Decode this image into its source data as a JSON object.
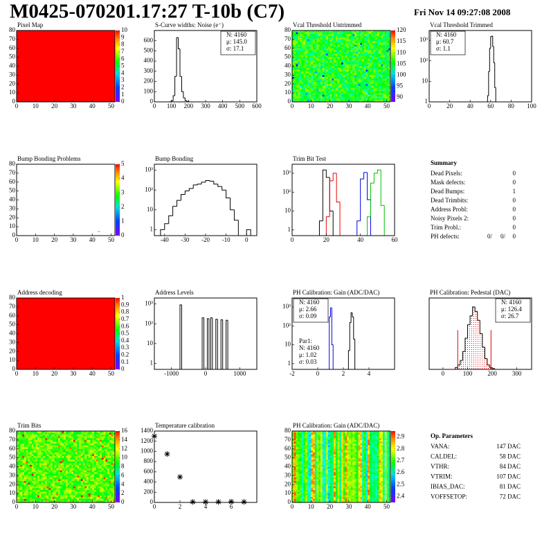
{
  "header": {
    "title": "M0425-070201.17:27 T-10b (C7)",
    "date": "Fri Nov 14 09:27:08 2008"
  },
  "chart_data": [
    {
      "type": "heatmap",
      "title": "Pixel Map",
      "xlim": [
        0,
        52
      ],
      "xticks": [
        0,
        10,
        20,
        30,
        40,
        50
      ],
      "ylim": [
        0,
        80
      ],
      "yticks": [
        0,
        10,
        20,
        30,
        40,
        50,
        60,
        70,
        80
      ],
      "zlim": [
        0,
        10
      ],
      "zticks": [
        0,
        1,
        2,
        3,
        4,
        5,
        6,
        7,
        8,
        9,
        10
      ],
      "color": "#ff0000"
    },
    {
      "type": "histogram",
      "title": "S-Curve widths: Noise (e⁻)",
      "xlim": [
        0,
        600
      ],
      "xticks": [
        0,
        100,
        200,
        300,
        400,
        500,
        600
      ],
      "ylim": [
        0,
        700
      ],
      "yticks": [
        0,
        100,
        200,
        300,
        400,
        500,
        600
      ],
      "bins": [
        90,
        100,
        110,
        120,
        130,
        140,
        150,
        160,
        170,
        180,
        190,
        200,
        210,
        220
      ],
      "series": [
        {
          "color": "#000000",
          "values": [
            2,
            10,
            60,
            250,
            630,
            520,
            250,
            100,
            40,
            12,
            4,
            1,
            0
          ]
        }
      ],
      "stats": [
        {
          "corner": "top-right",
          "lines": [
            "N: 4160",
            "μ: 145.0",
            "σ: 17.1"
          ],
          "colors": [
            "#000000",
            "#000000",
            "#000000"
          ]
        }
      ]
    },
    {
      "type": "heatmap",
      "title": "Vcal Threshold Untrimmed",
      "xlim": [
        0,
        52
      ],
      "xticks": [
        0,
        10,
        20,
        30,
        40,
        50
      ],
      "ylim": [
        0,
        80
      ],
      "yticks": [
        0,
        10,
        20,
        30,
        40,
        50,
        60,
        70,
        80
      ],
      "zlim": [
        88,
        120
      ],
      "zticks": [
        90,
        95,
        100,
        105,
        110,
        115,
        120
      ]
    },
    {
      "type": "histogram",
      "title": "Vcal Threshold Trimmed",
      "log_y": true,
      "xlim": [
        0,
        100
      ],
      "xticks": [
        0,
        20,
        40,
        60,
        80,
        100
      ],
      "ylim": [
        1,
        3000
      ],
      "yticks": [
        1,
        10,
        {
          "value": 100,
          "label": "10²"
        },
        {
          "value": 1000,
          "label": "10³"
        }
      ],
      "bins": [
        56,
        57,
        58,
        59,
        60,
        61,
        62,
        63,
        64,
        65,
        66
      ],
      "series": [
        {
          "color": "#000000",
          "values": [
            0,
            2,
            30,
            400,
            1500,
            1600,
            500,
            80,
            5,
            1
          ]
        }
      ],
      "stats": [
        {
          "corner": "top-left",
          "lines": [
            "N: 4160",
            "μ: 60.7",
            "σ:  1.1"
          ],
          "colors": [
            "#000000",
            "#000000",
            "#000000"
          ]
        }
      ]
    },
    {
      "type": "heatmap",
      "title": "Bump Bonding Problems",
      "xlim": [
        0,
        52
      ],
      "xticks": [
        0,
        10,
        20,
        30,
        40,
        50
      ],
      "ylim": [
        0,
        80
      ],
      "yticks": [
        0,
        10,
        20,
        30,
        40,
        50,
        60,
        70,
        80
      ],
      "zlim": [
        0,
        5
      ],
      "zticks": [
        0,
        1,
        2,
        3,
        4,
        5
      ],
      "points": {
        "x": [
          43
        ],
        "y": [
          4
        ],
        "z": [
          2.5
        ]
      }
    },
    {
      "type": "histogram",
      "title": "Bump Bonding",
      "log_y": true,
      "xlim": [
        -45,
        5
      ],
      "xticks": [
        -40,
        -30,
        -20,
        -10,
        0
      ],
      "ylim": [
        0.5,
        2000
      ],
      "yticks": [
        1,
        10,
        {
          "value": 100,
          "label": "10²"
        },
        {
          "value": 1000,
          "label": "10³"
        }
      ],
      "bins": [
        -42,
        -40,
        -38,
        -36,
        -34,
        -32,
        -30,
        -28,
        -26,
        -24,
        -22,
        -20,
        -18,
        -16,
        -14,
        -12,
        -10,
        -8,
        -6,
        -4,
        -2,
        0,
        2
      ],
      "series": [
        {
          "color": "#000000",
          "values": [
            1,
            2,
            5,
            15,
            30,
            60,
            90,
            120,
            180,
            200,
            250,
            300,
            280,
            200,
            150,
            100,
            40,
            10,
            3,
            0,
            0,
            1
          ]
        }
      ]
    },
    {
      "type": "histogram",
      "title": "Trim Bit Test",
      "log_y": true,
      "xlim": [
        0,
        60
      ],
      "xticks": [
        0,
        20,
        40,
        60
      ],
      "ylim": [
        0.5,
        3000
      ],
      "yticks": [
        1,
        10,
        {
          "value": 100,
          "label": "10²"
        },
        {
          "value": 1000,
          "label": "10³"
        }
      ],
      "bins": [
        14,
        16,
        18,
        20,
        22,
        24,
        26,
        28,
        30,
        32,
        34,
        36,
        38,
        40,
        42,
        44,
        46,
        48,
        50,
        52,
        54,
        56
      ],
      "series": [
        {
          "color": "#000000",
          "values": [
            0,
            3,
            1500,
            600,
            10,
            0,
            0,
            0,
            0,
            0,
            0,
            0,
            0,
            0,
            0,
            0,
            0,
            0,
            0,
            0,
            0
          ]
        },
        {
          "color": "#e00000",
          "values": [
            0,
            0,
            0,
            5,
            400,
            1000,
            30,
            0,
            0,
            0,
            0,
            0,
            0,
            0,
            0,
            0,
            0,
            0,
            0,
            0,
            0
          ]
        },
        {
          "color": "#0000e0",
          "values": [
            0,
            0,
            0,
            0,
            0,
            0,
            0,
            0,
            0,
            0,
            0,
            0,
            3,
            500,
            1100,
            40,
            0,
            0,
            0,
            0,
            0
          ]
        },
        {
          "color": "#00c000",
          "values": [
            0,
            0,
            0,
            0,
            0,
            0,
            0,
            0,
            0,
            0,
            0,
            0,
            0,
            0,
            0,
            5,
            300,
            1000,
            1500,
            20,
            0
          ]
        }
      ]
    },
    {
      "type": "heatmap",
      "title": "Address decoding",
      "xlim": [
        0,
        52
      ],
      "xticks": [
        0,
        10,
        20,
        30,
        40,
        50
      ],
      "ylim": [
        0,
        80
      ],
      "yticks": [
        0,
        10,
        20,
        30,
        40,
        50,
        60,
        70,
        80
      ],
      "zlim": [
        0,
        1
      ],
      "zticks": [
        0,
        0.1,
        0.2,
        0.3,
        0.4,
        0.5,
        0.6,
        0.7,
        0.8,
        0.9,
        1
      ],
      "color": "#ff0000"
    },
    {
      "type": "histogram",
      "title": "Address Levels",
      "log_y": true,
      "xlim": [
        -1500,
        1500
      ],
      "xticks": [
        -1000,
        0,
        1000
      ],
      "ylim": [
        0.5,
        2000
      ],
      "yticks": [
        1,
        10,
        {
          "value": 100,
          "label": "10²"
        },
        {
          "value": 1000,
          "label": "10³"
        }
      ],
      "bins": [
        -750,
        -700,
        -650,
        -600,
        -550,
        -500,
        -450,
        -400,
        -350,
        -300,
        -250,
        -200,
        -150,
        -100,
        -50,
        0,
        50,
        100,
        150,
        200,
        250,
        300,
        350,
        400,
        450,
        500,
        550,
        600,
        650,
        700,
        750
      ],
      "series": [
        {
          "color": "#000000",
          "values": [
            900,
            0,
            0,
            0,
            0,
            0,
            0,
            0,
            0,
            0,
            0,
            0,
            0,
            200,
            0,
            0,
            180,
            0,
            200,
            0,
            0,
            170,
            0,
            0,
            160,
            0,
            0,
            150,
            0,
            0
          ]
        }
      ]
    },
    {
      "type": "histogram",
      "title": "PH Calibration: Gain (ADC/DAC)",
      "log_y": true,
      "xlim": [
        -2,
        6
      ],
      "xticks": [
        -2,
        0,
        2,
        4
      ],
      "ylim": [
        0.5,
        3000
      ],
      "yticks": [
        1,
        10,
        {
          "value": 100,
          "label": "10²"
        },
        {
          "value": 1000,
          "label": "10³"
        }
      ],
      "bins": [
        0.8,
        0.9,
        1.0,
        1.1,
        1.2,
        1.3,
        1.4,
        1.5,
        1.6,
        1.7,
        1.8,
        1.9,
        2.0,
        2.1,
        2.2,
        2.3,
        2.4,
        2.5,
        2.6,
        2.7,
        2.8,
        2.9,
        3.0,
        3.1,
        3.2
      ],
      "series": [
        {
          "color": "#000000",
          "values": [
            0,
            0,
            0,
            0,
            0,
            0,
            0,
            0,
            0,
            0,
            0,
            0,
            0,
            0,
            0,
            0,
            5,
            150,
            500,
            300,
            20,
            0,
            0,
            0
          ]
        },
        {
          "color": "#0000e0",
          "values": [
            0,
            300,
            900,
            10,
            0,
            0,
            0,
            0,
            0,
            0,
            0,
            0,
            0,
            0,
            0,
            0,
            0,
            0,
            0,
            0,
            0,
            0,
            0,
            0
          ]
        }
      ],
      "stats": [
        {
          "corner": "top-left",
          "lines": [
            "N: 4160",
            "μ: 2.66",
            "σ: 0.09"
          ],
          "colors": [
            "#000000",
            "#000000",
            "#000000"
          ]
        },
        {
          "corner": "bottom-left",
          "lines": [
            "Par1:",
            "N: 4160",
            "μ: 1.02",
            "σ: 0.03"
          ],
          "colors": [
            "#0000e0",
            "#0000e0",
            "#0000e0",
            "#0000e0"
          ]
        }
      ]
    },
    {
      "type": "histogram",
      "title": "PH Calibration: Pedestal (DAC)",
      "xlim": [
        -56,
        360
      ],
      "xticks": [
        0,
        100,
        200,
        300
      ],
      "ylim": [
        0,
        80
      ],
      "bins": [
        40,
        50,
        60,
        70,
        80,
        90,
        100,
        110,
        120,
        130,
        140,
        150,
        160,
        170,
        180,
        190,
        200,
        210,
        220
      ],
      "series": [
        {
          "color": "#000000",
          "fill": "#e00000",
          "values": [
            0,
            2,
            5,
            10,
            20,
            35,
            50,
            60,
            70,
            65,
            55,
            40,
            25,
            12,
            5,
            2,
            1,
            0
          ]
        }
      ],
      "cuts": [
        60,
        195
      ],
      "cut_color": "#e00000",
      "stats": [
        {
          "corner": "top-right",
          "lines": [
            "N: 4160",
            "μ: 126.4",
            "σ: 26.7"
          ],
          "colors": [
            "#000000",
            "#e00000",
            "#e00000"
          ]
        }
      ]
    },
    {
      "type": "heatmap",
      "title": "Trim Bits",
      "xlim": [
        0,
        52
      ],
      "xticks": [
        0,
        10,
        20,
        30,
        40,
        50
      ],
      "ylim": [
        0,
        80
      ],
      "yticks": [
        0,
        10,
        20,
        30,
        40,
        50,
        60,
        70,
        80
      ],
      "zlim": [
        0,
        16
      ],
      "zticks": [
        0,
        2,
        4,
        6,
        8,
        10,
        12,
        14,
        16
      ]
    },
    {
      "type": "scatter",
      "title": "Temperature calibration",
      "xlim": [
        0,
        8
      ],
      "xticks": [
        0,
        2,
        4,
        6
      ],
      "ylim": [
        0,
        1400
      ],
      "yticks": [
        0,
        200,
        400,
        600,
        800,
        1000,
        1200,
        1400
      ],
      "x": [
        0,
        1,
        2,
        3,
        4,
        5,
        6,
        7
      ],
      "values": [
        1300,
        950,
        500,
        10,
        10,
        10,
        15,
        10
      ],
      "color": "#000000"
    },
    {
      "type": "heatmap",
      "title": "PH Calibration: Gain (ADC/DAC)",
      "xlim": [
        0,
        52
      ],
      "xticks": [
        0,
        10,
        20,
        30,
        40,
        50
      ],
      "ylim": [
        0,
        80
      ],
      "yticks": [
        0,
        10,
        20,
        30,
        40,
        50,
        60,
        70,
        80
      ],
      "zlim": [
        2.35,
        2.95
      ],
      "zticks": [
        2.4,
        2.5,
        2.6,
        2.7,
        2.8,
        2.9
      ]
    }
  ],
  "summary": {
    "title": "Summary",
    "rows": [
      {
        "label": "Dead Pixels:",
        "value": 0
      },
      {
        "label": "Mask defects:",
        "value": 0
      },
      {
        "label": "Dead Bumps:",
        "value": 1
      },
      {
        "label": "Dead Trimbits:",
        "value": 0
      },
      {
        "label": "Address Probl:",
        "value": 0
      },
      {
        "label": "Noisy Pixels 2:",
        "value": 0
      },
      {
        "label": "Trim Probl.:",
        "value": 0
      }
    ],
    "ph_defects": {
      "label": "PH defects:",
      "values": [
        "0/",
        "0/",
        "0"
      ],
      "colors": [
        "#000000",
        "#e00000",
        "#0000e0"
      ]
    }
  },
  "parameters": {
    "title": "Op. Parameters",
    "rows": [
      {
        "label": "VANA:",
        "value": "147 DAC"
      },
      {
        "label": "CALDEL:",
        "value": "58 DAC"
      },
      {
        "label": "VTHR:",
        "value": "84 DAC"
      },
      {
        "label": "VTRIM:",
        "value": "107 DAC"
      },
      {
        "label": "IBIAS_DAC:",
        "value": "81 DAC"
      },
      {
        "label": "VOFFSETOP:",
        "value": "72 DAC"
      }
    ]
  }
}
